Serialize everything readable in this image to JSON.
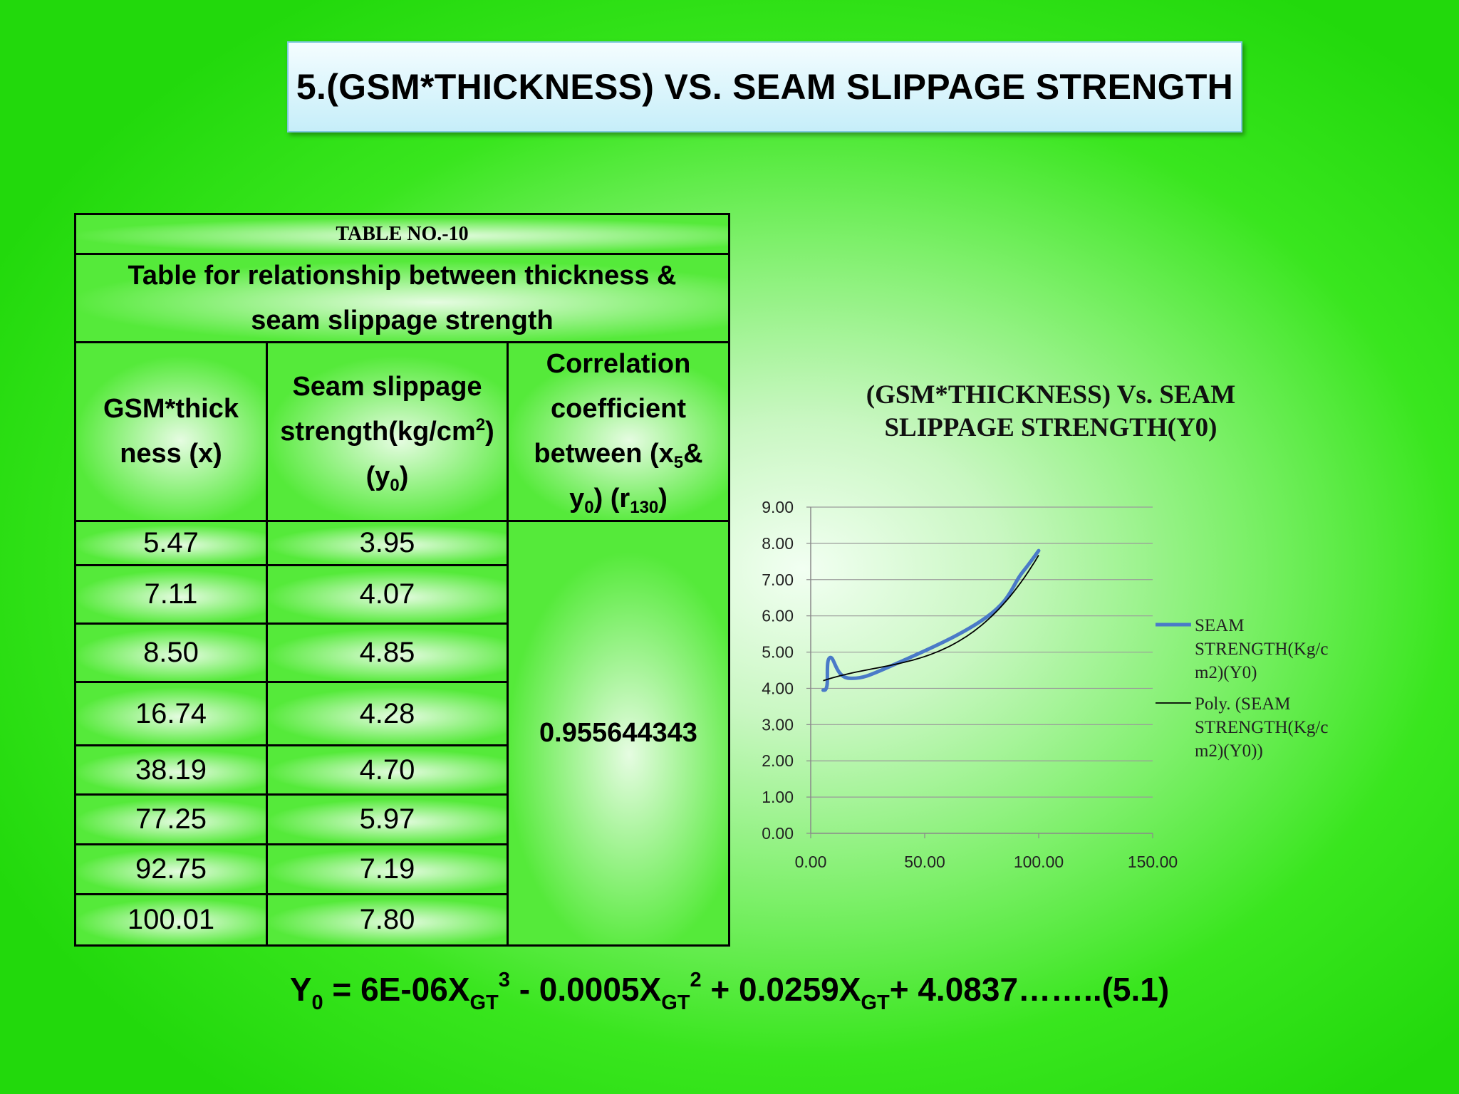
{
  "slide": {
    "title": "5.(GSM*THICKNESS) VS. SEAM SLIPPAGE STRENGTH",
    "equation": {
      "lhs": "Y",
      "lhs_sub": "0",
      "part1": " = 6E-06X",
      "sub1": "GT",
      "sup1": "3",
      "part2": " - 0.0005X",
      "sub2": "GT",
      "sup2": "2",
      "part3": " + 0.0259X",
      "sub3": "GT",
      "part4": "+ 4.0837……..(5.1)"
    }
  },
  "table": {
    "number": "TABLE NO.-10",
    "description": "Table for relationship between thickness & seam slippage strength",
    "headers": {
      "col1": "GSM*thickness (x)",
      "col2_main": "Seam slippage strength(kg/cm",
      "col2_sup": "2",
      "col2_mid": ")(y",
      "col2_sub": "0",
      "col2_end": ")",
      "col3_main": "Correlation coefficient between (x",
      "col3_sub1": "5",
      "col3_mid": "& y",
      "col3_sub2": "0",
      "col3_mid2": ") (r",
      "col3_sub3": "130",
      "col3_end": ")"
    },
    "rows": [
      {
        "x": "5.47",
        "y": "3.95"
      },
      {
        "x": "7.11",
        "y": "4.07"
      },
      {
        "x": "8.50",
        "y": "4.85"
      },
      {
        "x": "16.74",
        "y": "4.28"
      },
      {
        "x": "38.19",
        "y": "4.70"
      },
      {
        "x": "77.25",
        "y": "5.97"
      },
      {
        "x": "92.75",
        "y": "7.19"
      },
      {
        "x": "100.01",
        "y": "7.80"
      }
    ],
    "correlation": "0.955644343"
  },
  "chart_data": {
    "type": "scatter",
    "title": "(GSM*THICKNESS) Vs. SEAM SLIPPAGE  STRENGTH(Y0)",
    "xlim": [
      0,
      150
    ],
    "ylim": [
      0,
      9
    ],
    "x_ticks": [
      "0.00",
      "50.00",
      "100.00",
      "150.00"
    ],
    "y_ticks": [
      "0.00",
      "1.00",
      "2.00",
      "3.00",
      "4.00",
      "5.00",
      "6.00",
      "7.00",
      "8.00",
      "9.00"
    ],
    "grid": true,
    "legend_position": "right",
    "series": [
      {
        "name": "SEAM STRENGTH(Kg/cm2)(Y0)",
        "legend_lines": [
          "SEAM",
          "STRENGTH(Kg/c",
          "m2)(Y0)"
        ],
        "color": "#4a7ac8",
        "smooth": true,
        "x": [
          5.47,
          7.11,
          8.5,
          16.74,
          38.19,
          77.25,
          92.75,
          100.01
        ],
        "y": [
          3.95,
          4.07,
          4.85,
          4.28,
          4.7,
          5.97,
          7.19,
          7.8
        ]
      },
      {
        "name": "Poly. (SEAM STRENGTH(Kg/cm2)(Y0))",
        "legend_lines": [
          "Poly. (SEAM",
          "STRENGTH(Kg/c",
          "m2)(Y0))"
        ],
        "color": "#000000",
        "trendline": "polynomial",
        "coefficients": {
          "a3": 6e-06,
          "a2": -0.0005,
          "a1": 0.0259,
          "a0": 4.0837
        },
        "x_range": [
          5.47,
          100.01
        ]
      }
    ]
  }
}
